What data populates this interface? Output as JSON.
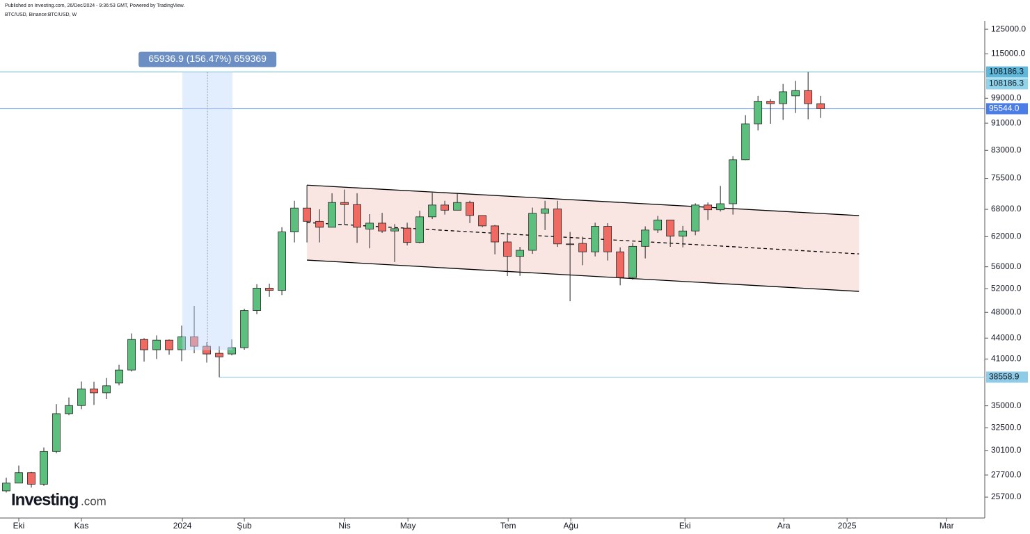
{
  "chart_data": {
    "type": "candlestick",
    "title": "BTC/USD, Binance:BTC/USD, W",
    "source": "Published on Investing.com, 26/Dec/2024 - 9:36:53 GMT, Powered by TradingView.",
    "logo": "Investing",
    "logo_suffix": ".com",
    "log_scale": true,
    "up_color": "#5cbf7d",
    "down_color": "#ef6a62",
    "x": [
      0,
      1,
      2,
      3,
      4,
      5,
      6,
      7,
      8,
      9,
      10,
      11,
      12,
      13,
      14,
      15,
      16,
      17,
      18,
      19,
      20,
      21,
      22,
      23,
      24,
      25,
      26,
      27,
      28,
      29,
      30,
      31,
      32,
      33,
      34,
      35,
      36,
      37,
      38,
      39,
      40,
      41,
      42,
      43,
      44,
      45,
      46,
      47,
      48,
      49,
      50,
      51,
      52,
      53,
      54,
      55,
      56,
      57,
      58,
      59,
      60,
      61,
      62,
      63,
      64,
      65
    ],
    "open": [
      26250,
      26950,
      27920,
      26850,
      29990,
      34080,
      35030,
      37060,
      36570,
      37800,
      39500,
      43800,
      42300,
      43700,
      42300,
      44200,
      42800,
      41800,
      41700,
      42600,
      48300,
      52100,
      51700,
      63000,
      68300,
      65300,
      64000,
      69600,
      69100,
      63600,
      64900,
      63200,
      63800,
      60800,
      66300,
      69000,
      67800,
      69600,
      66600,
      64300,
      60900,
      58000,
      59200,
      67100,
      68100,
      60500,
      60600,
      58900,
      64200,
      58900,
      54000,
      60000,
      63400,
      65600,
      62100,
      63200,
      69000,
      67900,
      69300,
      80400,
      90800,
      98000,
      97200,
      99800,
      101600,
      97200
    ],
    "high": [
      27450,
      28600,
      27990,
      30400,
      35200,
      36000,
      38000,
      37980,
      38450,
      40200,
      44700,
      44000,
      44400,
      43800,
      45900,
      49050,
      43400,
      42800,
      43800,
      48600,
      52800,
      52900,
      64000,
      70000,
      73800,
      68000,
      71800,
      72700,
      71800,
      66900,
      67200,
      64700,
      65000,
      67700,
      71900,
      70000,
      71900,
      70000,
      66600,
      64500,
      62800,
      59900,
      68400,
      70000,
      70000,
      63000,
      62000,
      65000,
      64900,
      59800,
      60700,
      64200,
      66500,
      65600,
      64300,
      69400,
      69600,
      73600,
      81400,
      93500,
      99800,
      98700,
      103900,
      105000,
      108186.3,
      99800
    ],
    "low": [
      26100,
      26950,
      26540,
      26700,
      29800,
      33900,
      34600,
      35100,
      35800,
      37500,
      39300,
      40640,
      41000,
      41600,
      40700,
      41800,
      40500,
      38558.9,
      41500,
      42300,
      47700,
      50600,
      50900,
      60800,
      60800,
      60800,
      64000,
      64500,
      60700,
      59600,
      62800,
      56900,
      60200,
      60600,
      65800,
      66800,
      67800,
      64900,
      64000,
      58400,
      54270,
      54300,
      58500,
      63400,
      59900,
      49850,
      56300,
      58000,
      57200,
      52600,
      53600,
      57600,
      62800,
      59900,
      59800,
      62300,
      65600,
      67500,
      66800,
      80300,
      88800,
      90800,
      92000,
      94200,
      92200,
      92600
    ],
    "close": [
      26950,
      27920,
      26850,
      29990,
      34080,
      35030,
      37060,
      36570,
      37450,
      39500,
      43800,
      42300,
      43700,
      42300,
      44200,
      42800,
      41700,
      41300,
      42600,
      48300,
      52100,
      51700,
      63000,
      68300,
      65300,
      64000,
      69600,
      69100,
      64000,
      64900,
      63200,
      63700,
      60800,
      66300,
      69000,
      67800,
      69600,
      66600,
      64300,
      60900,
      58000,
      59200,
      67100,
      68100,
      60500,
      60400,
      58900,
      64200,
      58900,
      54000,
      60000,
      63400,
      65600,
      62100,
      63200,
      69000,
      67900,
      69300,
      80400,
      90800,
      98000,
      97200,
      101200,
      101600,
      97200,
      95544
    ],
    "xlim": [
      -0.5,
      78.1
    ],
    "xticks": [
      {
        "value": 1,
        "label": "Eki"
      },
      {
        "value": 6,
        "label": "Kas"
      },
      {
        "value": 14.06,
        "label": "2024"
      },
      {
        "value": 19,
        "label": "Şub"
      },
      {
        "value": 27,
        "label": "Nis"
      },
      {
        "value": 32.06,
        "label": "May"
      },
      {
        "value": 40.06,
        "label": "Tem"
      },
      {
        "value": 45.06,
        "label": "Ağu"
      },
      {
        "value": 54.17,
        "label": "Eki"
      },
      {
        "value": 62.06,
        "label": "Ara"
      },
      {
        "value": 67.11,
        "label": "2025"
      },
      {
        "value": 75.06,
        "label": "Mar"
      }
    ],
    "ylim": [
      23950,
      128600
    ],
    "yticks": [
      {
        "value": 125000,
        "label": "125000.0"
      },
      {
        "value": 115000,
        "label": "115000.0"
      },
      {
        "value": 99000,
        "label": "99000.0"
      },
      {
        "value": 91000,
        "label": "91000.0"
      },
      {
        "value": 83000,
        "label": "83000.0"
      },
      {
        "value": 75500,
        "label": "75500.0"
      },
      {
        "value": 68000,
        "label": "68000.0"
      },
      {
        "value": 62000,
        "label": "62000.0"
      },
      {
        "value": 56000,
        "label": "56000.0"
      },
      {
        "value": 52000,
        "label": "52000.0"
      },
      {
        "value": 48000,
        "label": "48000.0"
      },
      {
        "value": 44000,
        "label": "44000.0"
      },
      {
        "value": 41000,
        "label": "41000.0"
      },
      {
        "value": 35000,
        "label": "35000.0"
      },
      {
        "value": 32500,
        "label": "32500.0"
      },
      {
        "value": 30100,
        "label": "30100.0"
      },
      {
        "value": 27700,
        "label": "27700.0"
      },
      {
        "value": 25700,
        "label": "25700.0"
      }
    ],
    "price_lines": [
      {
        "value": 108186.3,
        "label": "108186.3",
        "color": "#5fb8d9",
        "start": -0.5
      },
      {
        "value": 95544.0,
        "label": "95544.0",
        "color": "#4a7ee6",
        "start": -0.5
      },
      {
        "value": 38558.9,
        "label": "38558.9",
        "color": "#8fcbe6",
        "start": 17
      }
    ],
    "high_label": {
      "value": 108186.3,
      "label": "108186.3",
      "color": "#8fd3ea"
    },
    "measure": {
      "x": [
        14.06,
        18.06
      ],
      "from": 42249.4,
      "to": 108186.3,
      "label": "65936.9 (156.47%) 659369",
      "color": "#6b8fc4"
    },
    "channel": {
      "x": [
        24,
        68.06
      ],
      "upper": [
        73800,
        66580
      ],
      "middle": [
        65030,
        58490
      ],
      "lower": [
        57280,
        51530
      ],
      "color": "#f9e6e3"
    }
  }
}
